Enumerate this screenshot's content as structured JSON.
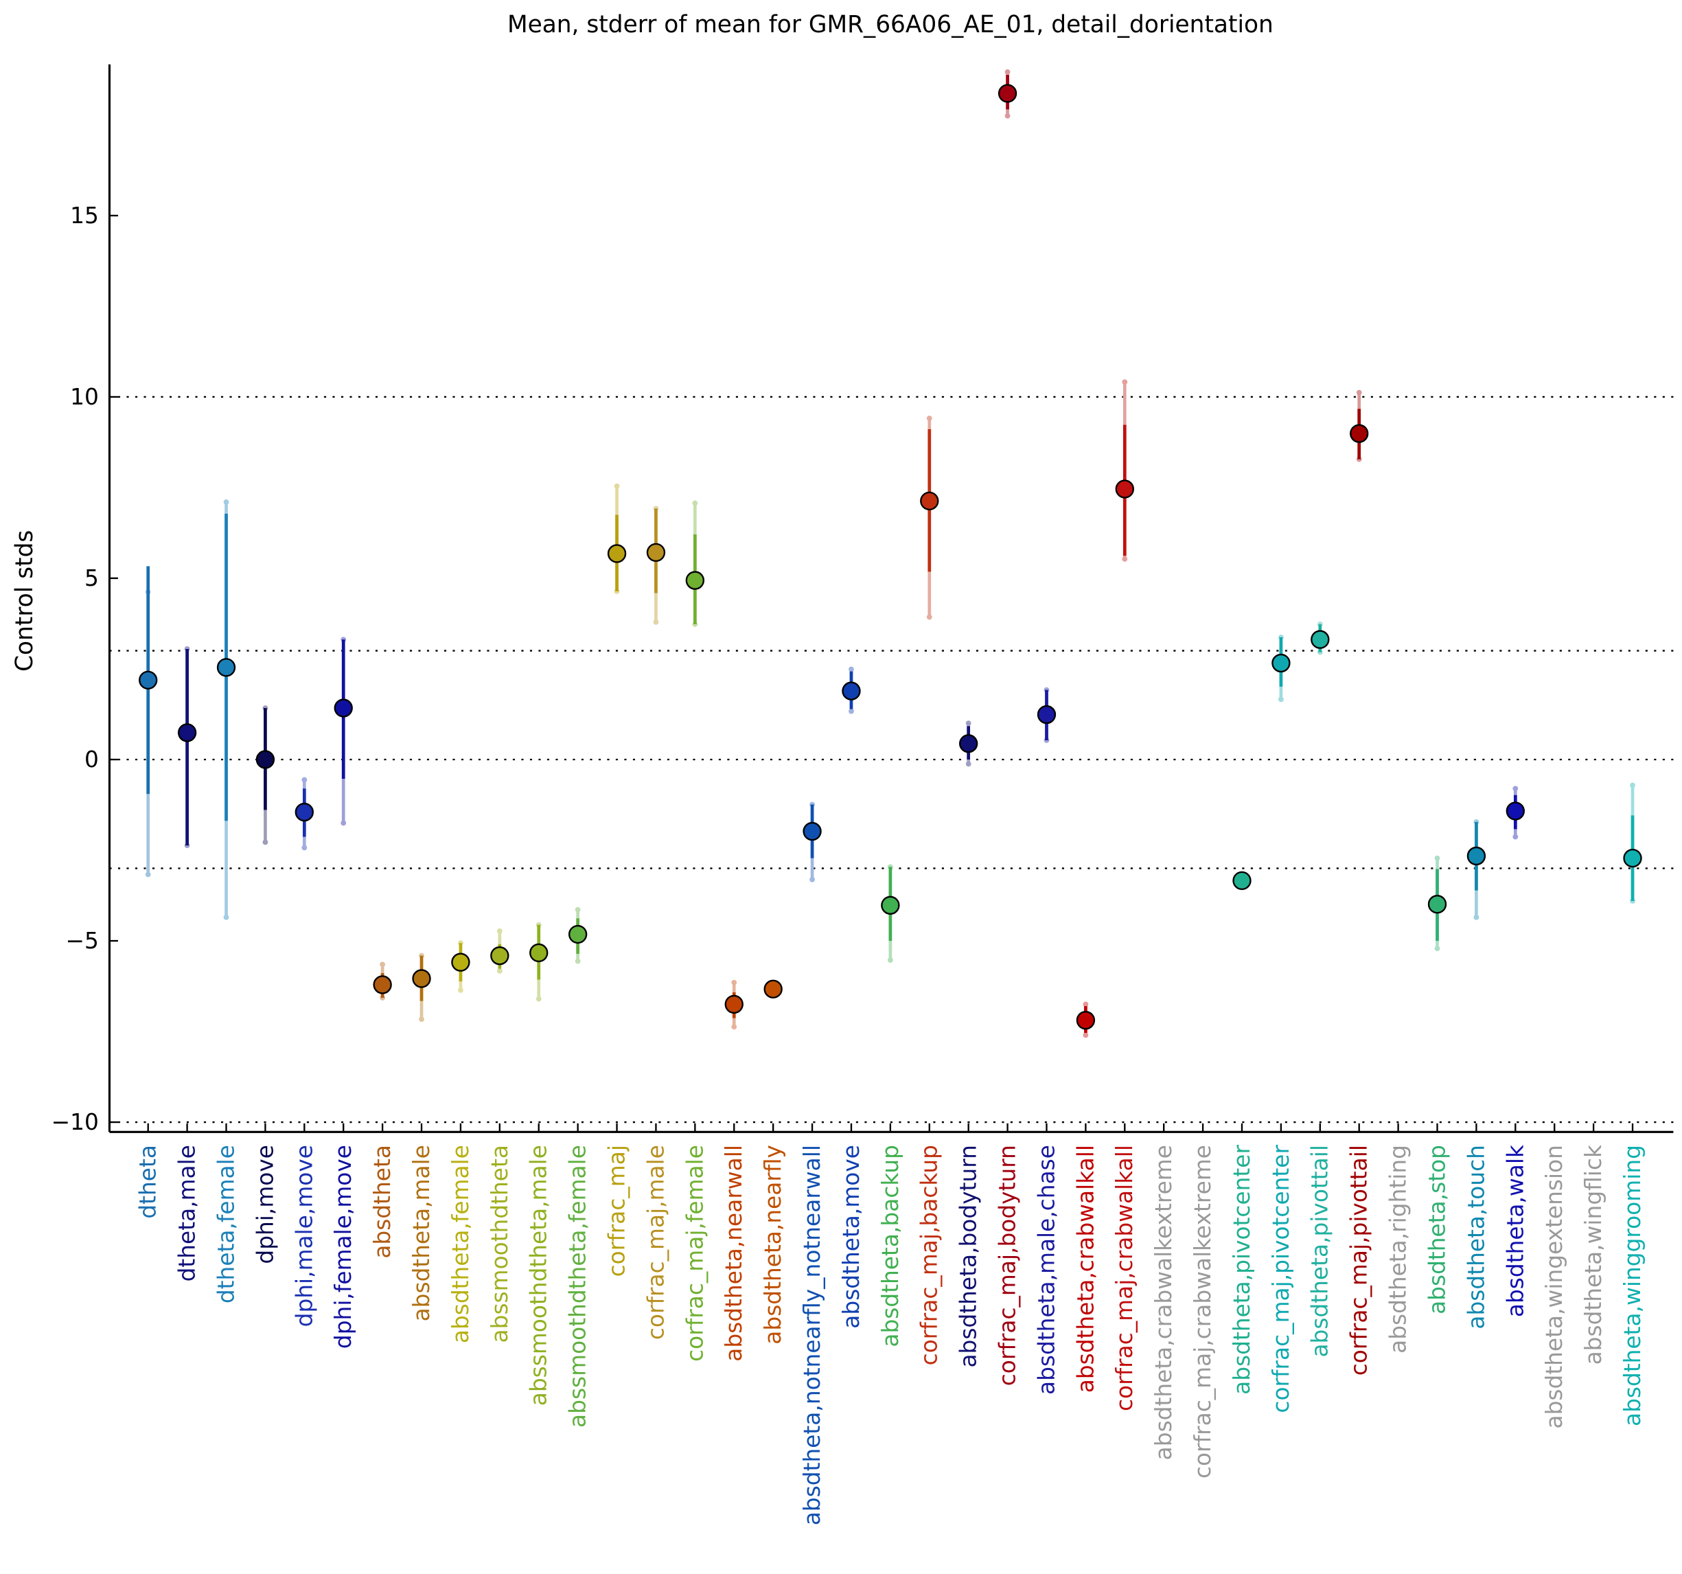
{
  "chart_data": {
    "type": "errorbar",
    "title": "Mean, stderr of mean for GMR_66A06_AE_01, detail_dorientation",
    "ylabel": "Control stds",
    "ylim": [
      -10.27,
      19.17
    ],
    "yticks": [
      {
        "value": -10,
        "label": "−10"
      },
      {
        "value": -5,
        "label": "−5"
      },
      0,
      5,
      10,
      15
    ],
    "hlines": [
      10,
      3,
      0,
      -3,
      -10
    ],
    "categories": [
      "dtheta",
      "dtheta,male",
      "dtheta,female",
      "dphi,move",
      "dphi,male,move",
      "dphi,female,move",
      "absdtheta",
      "absdtheta,male",
      "absdtheta,female",
      "abssmoothdtheta",
      "abssmoothdtheta,male",
      "abssmoothdtheta,female",
      "corfrac_maj",
      "corfrac_maj,male",
      "corfrac_maj,female",
      "absdtheta,nearwall",
      "absdtheta,nearfly",
      "absdtheta,notnearfly_notnearwall",
      "absdtheta,move",
      "absdtheta,backup",
      "corfrac_maj,backup",
      "absdtheta,bodyturn",
      "corfrac_maj,bodyturn",
      "absdtheta,male,chase",
      "absdtheta,crabwalkall",
      "corfrac_maj,crabwalkall",
      "absdtheta,crabwalkextreme",
      "corfrac_maj,crabwalkextreme",
      "absdtheta,pivotcenter",
      "corfrac_maj,pivotcenter",
      "absdtheta,pivottail",
      "corfrac_maj,pivottail",
      "absdtheta,righting",
      "absdtheta,stop",
      "absdtheta,touch",
      "absdtheta,walk",
      "absdtheta,wingextension",
      "absdtheta,wingflick",
      "absdtheta,winggrooming"
    ],
    "values": [
      2.19,
      0.74,
      2.54,
      0,
      -1.45,
      1.42,
      -6.21,
      -6.04,
      -5.59,
      -5.41,
      -5.33,
      -4.82,
      5.68,
      5.71,
      4.94,
      -6.75,
      -6.33,
      -1.98,
      1.89,
      -4.02,
      7.13,
      0.44,
      18.37,
      1.24,
      -7.19,
      7.46,
      null,
      null,
      -3.34,
      2.66,
      3.31,
      8.99,
      null,
      -3.99,
      -2.66,
      -1.42,
      null,
      null,
      -2.72
    ],
    "stderr_range": [
      [
        -0.95,
        5.33
      ],
      [
        -2.37,
        3.05
      ],
      [
        -1.69,
        6.78
      ],
      [
        -1.39,
        1.42
      ],
      [
        -2.13,
        -0.8
      ],
      [
        -0.53,
        3.31
      ],
      [
        -6.57,
        -5.89
      ],
      [
        -6.66,
        -5.41
      ],
      [
        -6.12,
        -5.06
      ],
      [
        -5.77,
        -5.09
      ],
      [
        -6.07,
        -4.56
      ],
      [
        -5.36,
        -4.38
      ],
      [
        4.64,
        6.75
      ],
      [
        4.59,
        6.92
      ],
      [
        3.73,
        6.21
      ],
      [
        -7.13,
        -6.42
      ],
      null,
      [
        -2.72,
        -1.24
      ],
      [
        1.39,
        2.43
      ],
      [
        -5.0,
        -2.96
      ],
      [
        5.18,
        9.11
      ],
      [
        0,
        0.92
      ],
      [
        17.93,
        18.88
      ],
      [
        0.53,
        1.92
      ],
      [
        -7.54,
        -6.8
      ],
      [
        5.62,
        9.23
      ],
      null,
      null,
      null,
      [
        2.01,
        3.37
      ],
      [
        2.96,
        3.73
      ],
      [
        8.28,
        9.67
      ],
      null,
      [
        -5.0,
        -3.02
      ],
      [
        -3.61,
        -1.72
      ],
      [
        -1.92,
        -0.98
      ],
      null,
      null,
      [
        -3.9,
        -1.54
      ]
    ],
    "spread_range": [
      [
        -3.17,
        4.62
      ],
      [
        -2.37,
        3.05
      ],
      [
        -4.35,
        7.1
      ],
      [
        -2.28,
        1.42
      ],
      [
        -2.43,
        -0.56
      ],
      [
        -1.75,
        3.31
      ],
      [
        -6.57,
        -5.65
      ],
      [
        -7.16,
        -5.41
      ],
      [
        -6.36,
        -5.06
      ],
      [
        -5.83,
        -4.73
      ],
      [
        -6.6,
        -4.56
      ],
      [
        -5.56,
        -4.14
      ],
      [
        4.64,
        7.54
      ],
      [
        3.79,
        6.92
      ],
      [
        3.73,
        7.07
      ],
      [
        -7.37,
        -6.15
      ],
      null,
      [
        -3.31,
        -1.24
      ],
      [
        1.33,
        2.49
      ],
      [
        -5.53,
        -2.96
      ],
      [
        3.93,
        9.41
      ],
      [
        -0.12,
        1.0
      ],
      [
        17.75,
        18.96
      ],
      [
        0.53,
        1.92
      ],
      [
        -7.6,
        -6.75
      ],
      [
        5.53,
        10.41
      ],
      null,
      null,
      null,
      [
        1.66,
        3.37
      ],
      [
        2.96,
        3.73
      ],
      [
        8.28,
        10.12
      ],
      null,
      [
        -5.21,
        -2.72
      ],
      [
        -4.35,
        -1.72
      ],
      [
        -2.13,
        -0.8
      ],
      null,
      null,
      [
        -3.9,
        -0.71
      ]
    ],
    "colors": [
      "#1a6fb0",
      "#10107a",
      "#1a80b8",
      "#0a0a50",
      "#1a30b0",
      "#1010a0",
      "#b05a10",
      "#b07010",
      "#b8b010",
      "#a0b020",
      "#90b020",
      "#60b040",
      "#b8a010",
      "#b89020",
      "#70b030",
      "#c04000",
      "#c05000",
      "#1050b0",
      "#1040b0",
      "#40b050",
      "#c03010",
      "#101070",
      "#a00010",
      "#1a1aa0",
      "#c00000",
      "#c01010",
      "#999999",
      "#999999",
      "#20b090",
      "#10a8b0",
      "#20b0a0",
      "#a00000",
      "#999999",
      "#30b070",
      "#1088b0",
      "#1010b0",
      "#999999",
      "#999999",
      "#10b0b0"
    ]
  }
}
